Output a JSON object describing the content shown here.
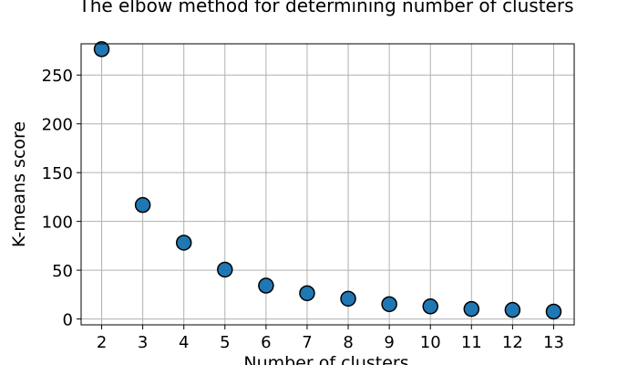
{
  "chart_data": {
    "type": "scatter",
    "title": "The elbow method for determining number of clusters",
    "xlabel": "Number of clusters",
    "ylabel": "K-means score",
    "x": [
      2,
      3,
      4,
      5,
      6,
      7,
      8,
      9,
      10,
      11,
      12,
      13
    ],
    "y": [
      276.5,
      116.8,
      78.2,
      50.6,
      34.2,
      26.4,
      20.8,
      15.2,
      12.9,
      10.3,
      9.3,
      7.6
    ],
    "xlim": [
      1.5,
      13.5
    ],
    "ylim": [
      -6,
      282
    ],
    "xticks": [
      "2",
      "3",
      "4",
      "5",
      "6",
      "7",
      "8",
      "9",
      "10",
      "11",
      "12",
      "13"
    ],
    "yticks": [
      "0",
      "50",
      "100",
      "150",
      "200",
      "250"
    ],
    "grid": true,
    "marker_color": "#1f77b4",
    "marker_edge_color": "#000000",
    "grid_color": "#b0b0b0"
  }
}
